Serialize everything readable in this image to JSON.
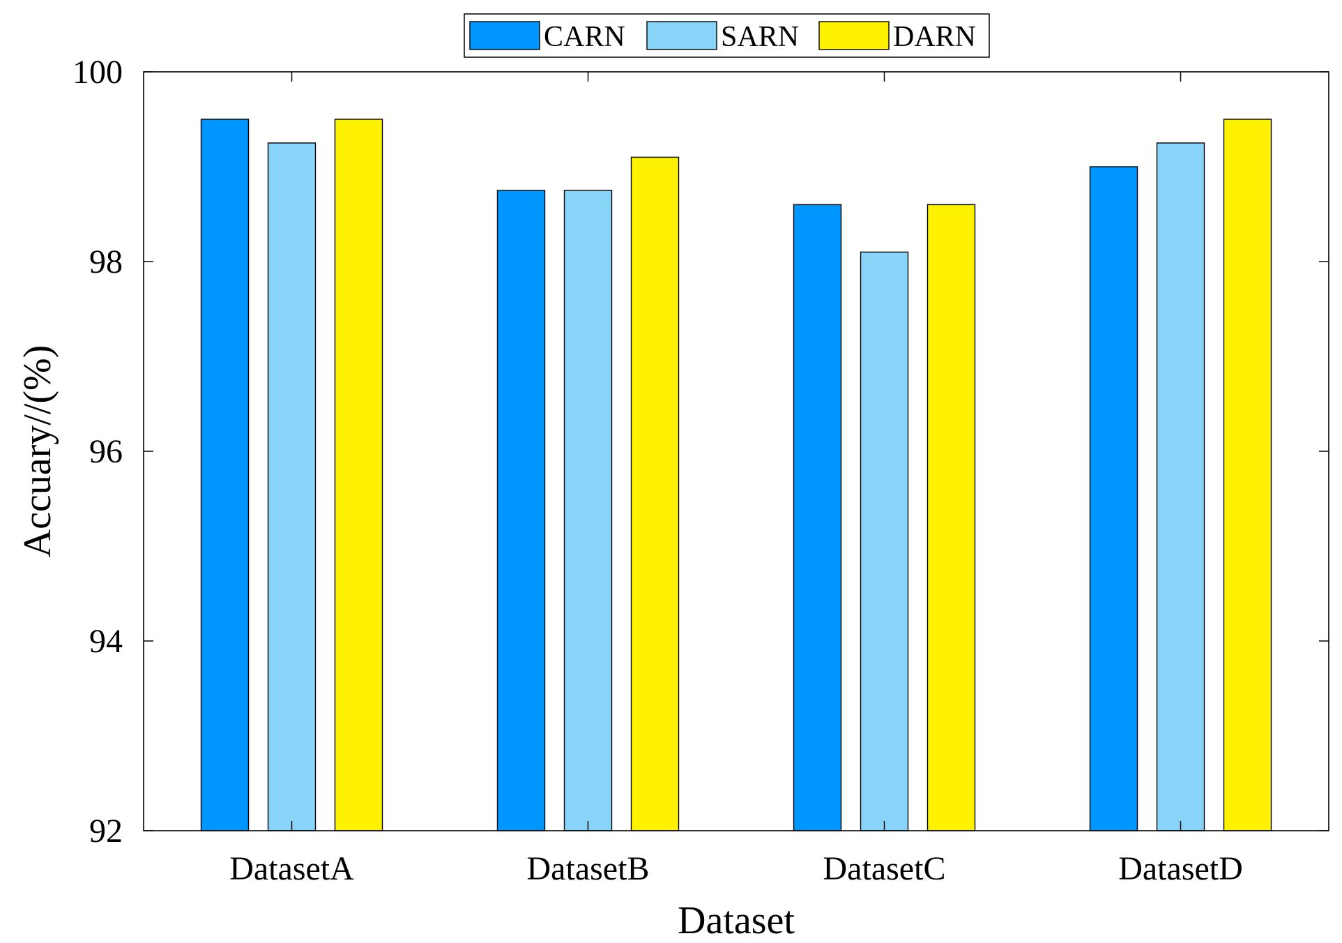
{
  "chart_data": {
    "type": "bar",
    "title": "",
    "xlabel": "Dataset",
    "ylabel": "Accuary//(%)",
    "categories": [
      "DatasetA",
      "DatasetB",
      "DatasetC",
      "DatasetD"
    ],
    "series": [
      {
        "name": "CARN",
        "color": "#0096ff",
        "values": [
          99.5,
          98.75,
          98.6,
          99.0
        ]
      },
      {
        "name": "SARN",
        "color": "#87d4f8",
        "values": [
          99.25,
          98.75,
          98.1,
          99.25
        ]
      },
      {
        "name": "DARN",
        "color": "#fff200",
        "values": [
          99.5,
          99.1,
          98.6,
          99.5
        ]
      }
    ],
    "ylim": [
      92,
      100
    ],
    "yticks": [
      92,
      94,
      96,
      98,
      100
    ],
    "ytick_labels": [
      "92",
      "94",
      "96",
      "98",
      "100"
    ],
    "grid": false,
    "legend_position": "top-center, outside, horizontal"
  }
}
